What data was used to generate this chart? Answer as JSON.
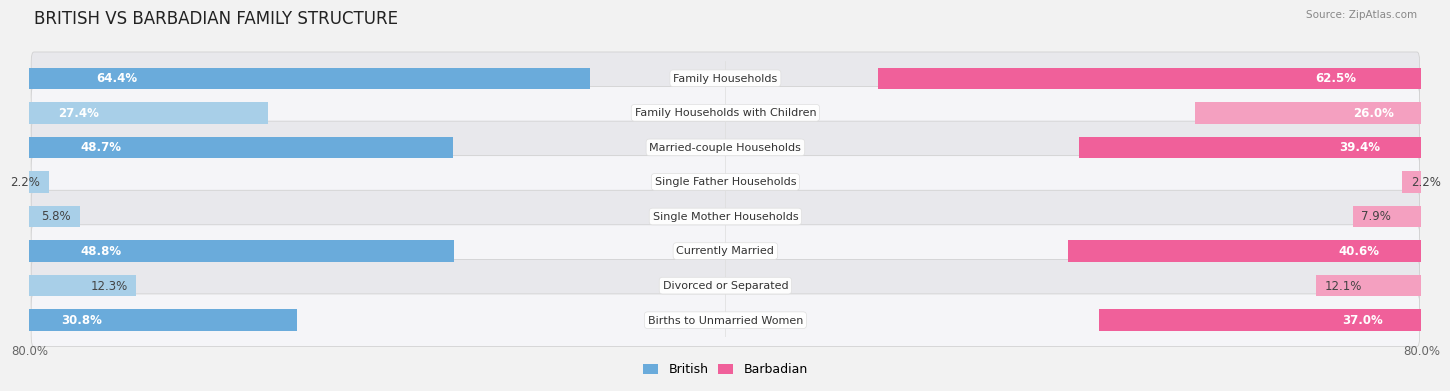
{
  "title": "BRITISH VS BARBADIAN FAMILY STRUCTURE",
  "source": "Source: ZipAtlas.com",
  "categories": [
    "Family Households",
    "Family Households with Children",
    "Married-couple Households",
    "Single Father Households",
    "Single Mother Households",
    "Currently Married",
    "Divorced or Separated",
    "Births to Unmarried Women"
  ],
  "british_values": [
    64.4,
    27.4,
    48.7,
    2.2,
    5.8,
    48.8,
    12.3,
    30.8
  ],
  "barbadian_values": [
    62.5,
    26.0,
    39.4,
    2.2,
    7.9,
    40.6,
    12.1,
    37.0
  ],
  "max_val": 80.0,
  "british_color_dark": "#6aabdb",
  "british_color_light": "#a8cfe8",
  "barbadian_color_dark": "#f0609a",
  "barbadian_color_light": "#f4a0c0",
  "british_label": "British",
  "barbadian_label": "Barbadian",
  "bg_color": "#f2f2f2",
  "row_bg_colors": [
    "#e8e8ec",
    "#f5f5f8"
  ],
  "title_fontsize": 12,
  "bar_label_fontsize": 8.5,
  "cat_label_fontsize": 8,
  "axis_label_fontsize": 8.5,
  "legend_fontsize": 9,
  "large_threshold": 15,
  "small_threshold": 15
}
